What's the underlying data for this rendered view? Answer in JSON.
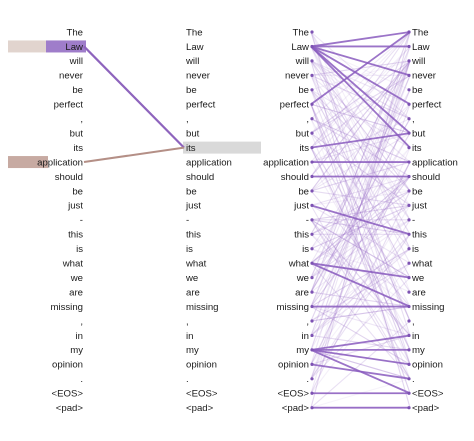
{
  "panels": {
    "left": {
      "tokens": [
        "The",
        "Law",
        "will",
        "never",
        "be",
        "perfect",
        ",",
        "but",
        "its",
        "application",
        "should",
        "be",
        "just",
        "-",
        "this",
        "is",
        "what",
        "we",
        "are",
        "missing",
        ",",
        "in",
        "my",
        "opinion",
        ".",
        "<EOS>",
        "<pad>"
      ]
    },
    "right": {
      "tokens": [
        "The",
        "Law",
        "will",
        "never",
        "be",
        "perfect",
        ",",
        "but",
        "its",
        "application",
        "should",
        "be",
        "just",
        "-",
        "this",
        "is",
        "what",
        "we",
        "are",
        "missing",
        ",",
        "in",
        "my",
        "opinion",
        ".",
        "<EOS>",
        "<pad>"
      ],
      "highlighted_token": "its"
    }
  },
  "attention_colors": {
    "line_purple": "#9a6fc8",
    "line_brown": "#b79a92",
    "bar_purple": "#9b78c9",
    "bar_tan": "#c9b0a6",
    "bar_gray": "#d9d9d9"
  },
  "single_view": {
    "query_token": "Law",
    "query_link_target": "its",
    "second_query_token": "application",
    "second_link_target": "its"
  },
  "all_heads_view": {
    "strong_links": [
      [
        "Law",
        "The"
      ],
      [
        "Law",
        "Law"
      ],
      [
        "Law",
        "never"
      ],
      [
        "Law",
        "perfect"
      ],
      [
        "Law",
        "but"
      ],
      [
        "Law",
        "its"
      ],
      [
        "perfect",
        "The"
      ],
      [
        "its",
        "but"
      ],
      [
        "application",
        "application"
      ],
      [
        "should",
        "should"
      ],
      [
        "just",
        "this"
      ],
      [
        "what",
        "we"
      ],
      [
        "what",
        "missing"
      ],
      [
        "missing",
        "missing"
      ],
      [
        "my",
        "in"
      ],
      [
        "my",
        "my"
      ],
      [
        "my",
        "opinion"
      ],
      [
        "my",
        "<EOS>"
      ],
      [
        "opinion",
        "."
      ],
      [
        "<EOS>",
        "<EOS>"
      ],
      [
        "<pad>",
        "<pad>"
      ]
    ]
  }
}
